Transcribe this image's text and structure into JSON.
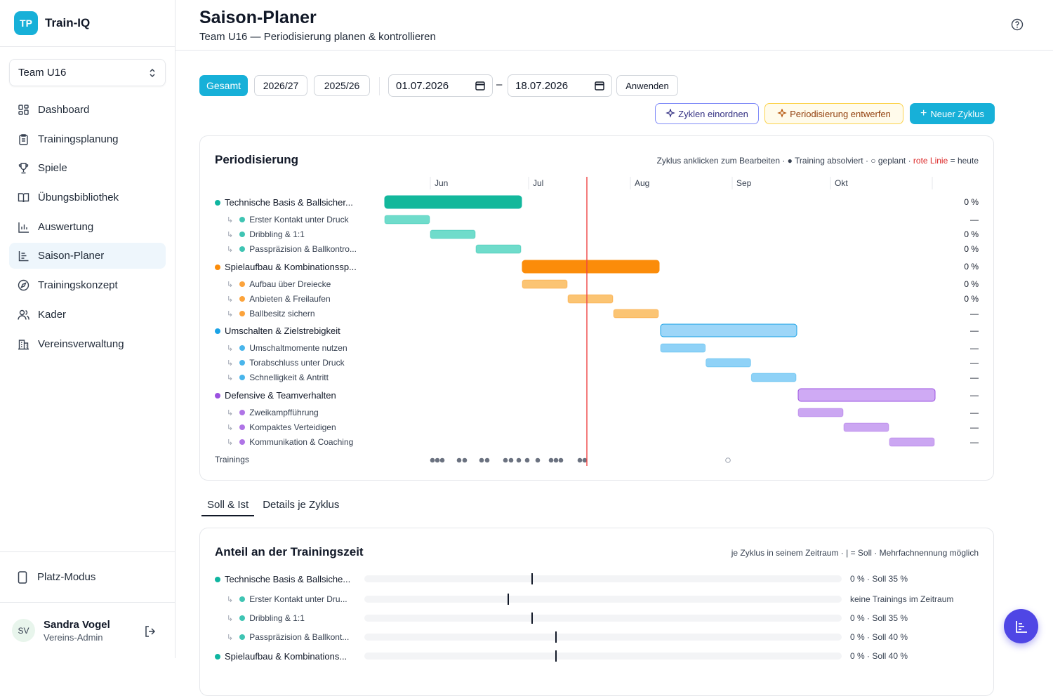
{
  "app": {
    "logo_text": "TP",
    "name": "Train-IQ"
  },
  "team_select": {
    "value": "Team U16"
  },
  "nav": [
    {
      "label": "Dashboard",
      "icon": "dashboard-icon",
      "active": false
    },
    {
      "label": "Trainingsplanung",
      "icon": "clipboard-icon",
      "active": false
    },
    {
      "label": "Spiele",
      "icon": "trophy-icon",
      "active": false
    },
    {
      "label": "Übungsbibliothek",
      "icon": "book-icon",
      "active": false
    },
    {
      "label": "Auswertung",
      "icon": "bar-chart-icon",
      "active": false
    },
    {
      "label": "Saison-Planer",
      "icon": "gantt-icon",
      "active": true
    },
    {
      "label": "Trainingskonzept",
      "icon": "compass-icon",
      "active": false
    },
    {
      "label": "Kader",
      "icon": "users-icon",
      "active": false
    },
    {
      "label": "Vereinsverwaltung",
      "icon": "building-icon",
      "active": false
    }
  ],
  "platz_modus": "Platz-Modus",
  "user": {
    "initials": "SV",
    "name": "Sandra Vogel",
    "role": "Vereins-Admin"
  },
  "header": {
    "title": "Saison-Planer",
    "subtitle": "Team U16 — Periodisierung planen & kontrollieren"
  },
  "filters": {
    "gesamt": "Gesamt",
    "season1": "2026/27",
    "season2": "2025/26",
    "date_from": "01.07.2026",
    "dash": "–",
    "date_to": "18.07.2026",
    "apply": "Anwenden"
  },
  "actions": {
    "zyklen": "Zyklen einordnen",
    "perio": "Periodisierung entwerfen",
    "neu": "Neuer Zyklus"
  },
  "periodisierung": {
    "title": "Periodisierung",
    "legend_prefix": "Zyklus anklicken zum Bearbeiten · ● Training absolviert · ○ geplant · ",
    "legend_red": "rote Linie",
    "legend_suffix": " = heute",
    "months": [
      "Jun",
      "Jul",
      "Aug",
      "Sep",
      "Okt"
    ],
    "trainings_label": "Trainings"
  },
  "colors": {
    "green": "#14b8a6",
    "orange": "#f59e0b",
    "blue": "#38bdf8",
    "purple": "#a855f7",
    "today": "#ef4444"
  },
  "cycles": [
    {
      "name": "Technische Basis & Ballsicher...",
      "pct": "0 %",
      "color": "#0fb5a0",
      "sub": [
        {
          "name": "Erster Kontakt unter Druck",
          "pct": "—"
        },
        {
          "name": "Dribbling & 1:1",
          "pct": "0 %"
        },
        {
          "name": "Passpräzision & Ballkontro...",
          "pct": "0 %"
        }
      ]
    },
    {
      "name": "Spielaufbau & Kombinationssp...",
      "pct": "0 %",
      "color": "#fb8c0a",
      "sub": [
        {
          "name": "Aufbau über Dreiecke",
          "pct": "0 %"
        },
        {
          "name": "Anbieten & Freilaufen",
          "pct": "0 %"
        },
        {
          "name": "Ballbesitz sichern",
          "pct": "—"
        }
      ]
    },
    {
      "name": "Umschalten & Zielstrebigkeit",
      "pct": "—",
      "color": "#1ba3e6",
      "sub": [
        {
          "name": "Umschaltmomente nutzen",
          "pct": "—"
        },
        {
          "name": "Torabschluss unter Druck",
          "pct": "—"
        },
        {
          "name": "Schnelligkeit & Antritt",
          "pct": "—"
        }
      ]
    },
    {
      "name": "Defensive & Teamverhalten",
      "pct": "—",
      "color": "#9b51e0",
      "sub": [
        {
          "name": "Zweikampfführung",
          "pct": "—"
        },
        {
          "name": "Kompaktes Verteidigen",
          "pct": "—"
        },
        {
          "name": "Kommunikation & Coaching",
          "pct": "—"
        }
      ]
    }
  ],
  "tabs": [
    "Soll & Ist",
    "Details je Zyklus"
  ],
  "anteil": {
    "title": "Anteil an der Trainingszeit",
    "legend": "je Zyklus in seinem Zeitraum · | = Soll · Mehrfachnennung möglich",
    "rows": [
      {
        "name": "Technische Basis & Ballsiche...",
        "text": "0 % · Soll 35 %",
        "soll": 35,
        "sub": false
      },
      {
        "name": "Erster Kontakt unter Dru...",
        "text": "keine Trainings im Zeitraum",
        "soll": 30,
        "sub": true
      },
      {
        "name": "Dribbling & 1:1",
        "text": "0 % · Soll 35 %",
        "soll": 35,
        "sub": true
      },
      {
        "name": "Passpräzision & Ballkont...",
        "text": "0 % · Soll 40 %",
        "soll": 40,
        "sub": true
      },
      {
        "name": "Spielaufbau & Kombinations...",
        "text": "0 % · Soll 40 %",
        "soll": 40,
        "sub": false
      }
    ]
  }
}
